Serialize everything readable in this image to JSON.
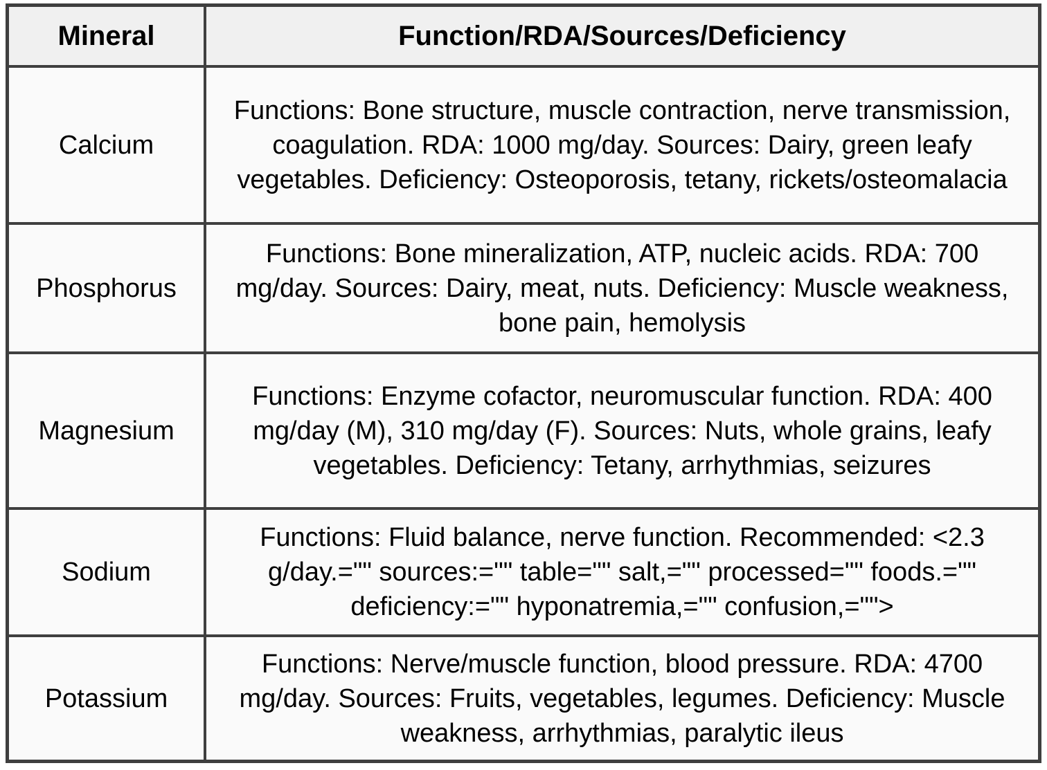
{
  "table": {
    "headers": {
      "mineral": "Mineral",
      "details": "Function/RDA/Sources/Deficiency"
    },
    "rows": [
      {
        "mineral": "Calcium",
        "details": "Functions: Bone structure, muscle contraction, nerve transmission, coagulation. RDA: 1000 mg/day. Sources: Dairy, green leafy vegetables. Deficiency: Osteoporosis, tetany, rickets/osteomalacia"
      },
      {
        "mineral": "Phosphorus",
        "details": "Functions: Bone mineralization, ATP, nucleic acids. RDA: 700 mg/day. Sources: Dairy, meat, nuts. Deficiency: Muscle weakness, bone pain, hemolysis"
      },
      {
        "mineral": "Magnesium",
        "details": "Functions: Enzyme cofactor, neuromuscular function. RDA: 400 mg/day (M), 310 mg/day (F). Sources: Nuts, whole grains, leafy vegetables. Deficiency: Tetany, arrhythmias, seizures"
      },
      {
        "mineral": "Sodium",
        "details": "Functions: Fluid balance, nerve function. Recommended: <2.3 g/day.=\"\" sources:=\"\" table=\"\" salt,=\"\" processed=\"\" foods.=\"\" deficiency:=\"\" hyponatremia,=\"\" confusion,=\"\">"
      },
      {
        "mineral": "Potassium",
        "details": "Functions: Nerve/muscle function, blood pressure. RDA: 4700 mg/day. Sources: Fruits, vegetables, legumes. Deficiency: Muscle weakness, arrhythmias, paralytic ileus"
      }
    ],
    "colors": {
      "border": "#3f3f3f",
      "header_bg": "#f0f0f0",
      "cell_bg": "#fafafa",
      "text": "#000000",
      "page_bg": "#ffffff"
    }
  }
}
